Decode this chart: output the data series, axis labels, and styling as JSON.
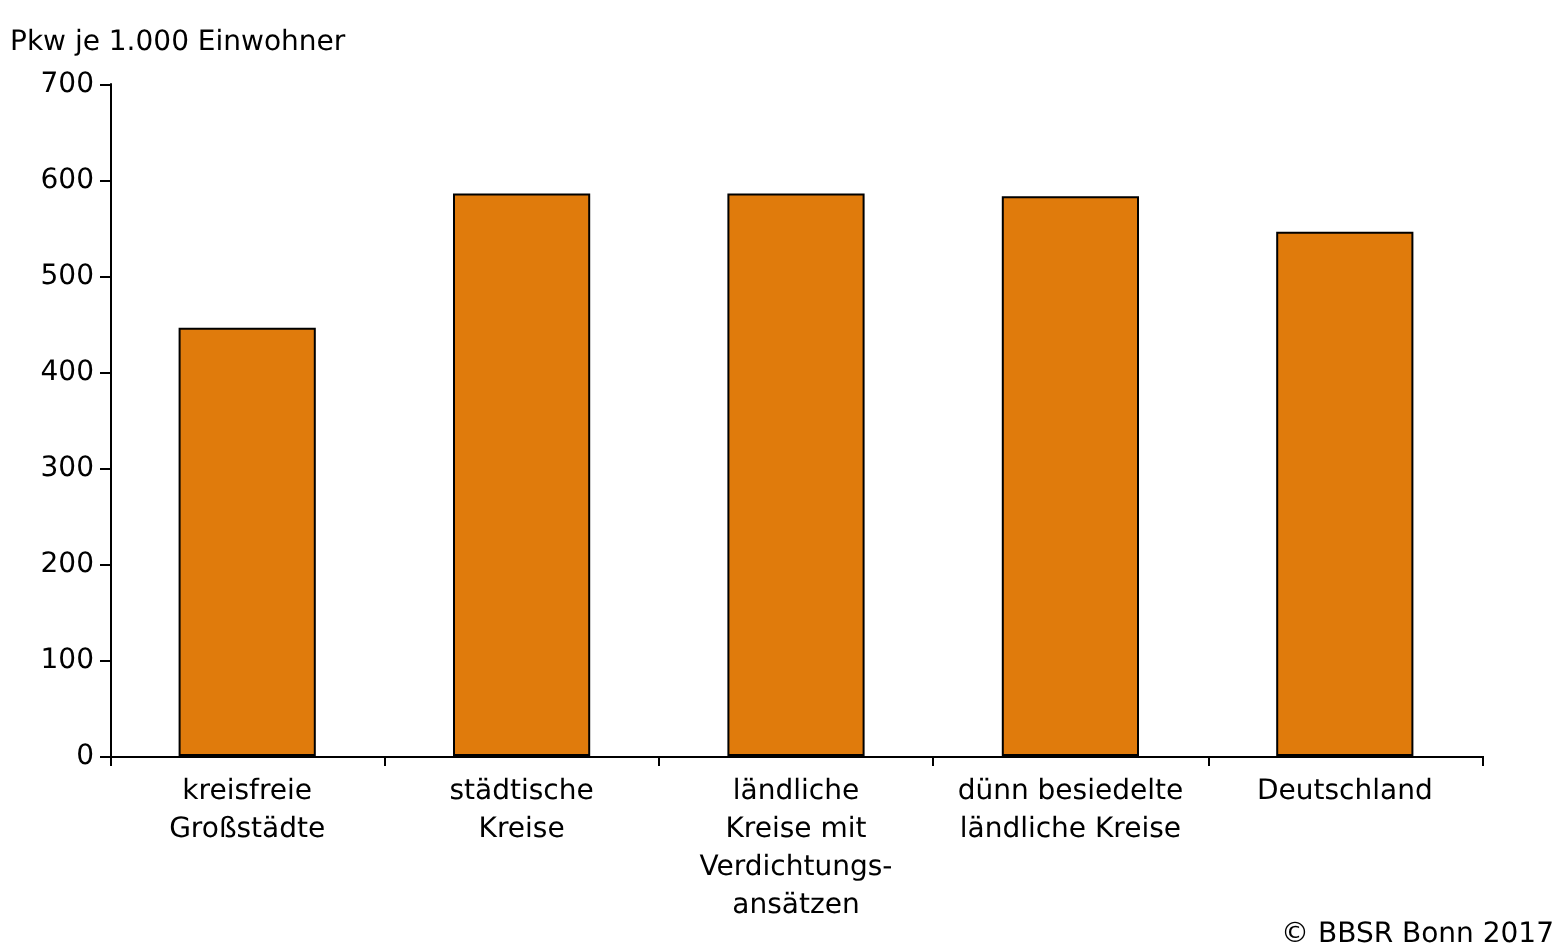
{
  "chart_data": {
    "type": "bar",
    "ylabel": "Pkw je 1.000 Einwohner",
    "categories": [
      "kreisfreie\nGroßstädte",
      "städtische\nKreise",
      "ländliche\nKreise mit\nVerdichtungs-\nansätzen",
      "dünn besiedelte\nländliche Kreise",
      "Deutschland"
    ],
    "values": [
      446,
      586,
      586,
      583,
      546
    ],
    "color": "#e07b0c",
    "ylim": [
      0,
      700
    ],
    "yticks": [
      0,
      100,
      200,
      300,
      400,
      500,
      600,
      700
    ],
    "grid": false,
    "annotations": [
      "© BBSR Bonn 2017"
    ]
  }
}
